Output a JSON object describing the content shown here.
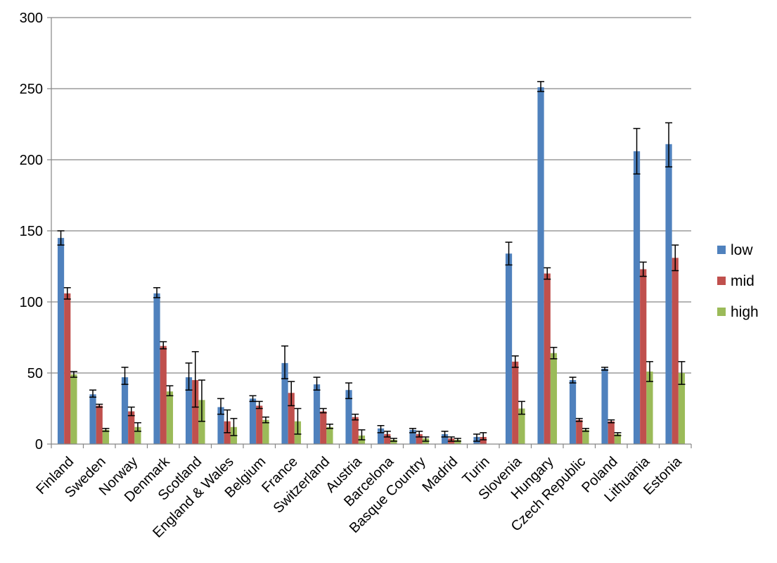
{
  "chart_data": {
    "type": "bar",
    "title": "",
    "xlabel": "",
    "ylabel": "",
    "ylim": [
      0,
      300
    ],
    "yticks": [
      0,
      50,
      100,
      150,
      200,
      250,
      300
    ],
    "grid": true,
    "legend_position": "right",
    "error_bars": true,
    "categories": [
      "Finland",
      "Sweden",
      "Norway",
      "Denmark",
      "Scotland",
      "England & Wales",
      "Belgium",
      "France",
      "Switzerland",
      "Austria",
      "Barcelona",
      "Basque Country",
      "Madrid",
      "Turin",
      "Slovenia",
      "Hungary",
      "Czech Republic",
      "Poland",
      "Lithuania",
      "Estonia"
    ],
    "series": [
      {
        "name": "low",
        "color": "#4F81BD",
        "values": [
          145,
          35,
          47,
          106,
          47,
          26,
          32,
          57,
          42,
          38,
          11,
          10,
          7,
          5,
          134,
          251,
          45,
          53,
          206,
          211
        ],
        "err_low": [
          140,
          33,
          42,
          103,
          38,
          21,
          30,
          46,
          38,
          32,
          8,
          8,
          5,
          2,
          126,
          248,
          43,
          52,
          190,
          195
        ],
        "err_high": [
          150,
          38,
          54,
          110,
          57,
          32,
          34,
          69,
          47,
          43,
          13,
          11,
          9,
          7,
          142,
          255,
          47,
          54,
          222,
          226
        ]
      },
      {
        "name": "mid",
        "color": "#C0504D",
        "values": [
          106,
          27,
          23,
          69,
          45,
          16,
          27,
          36,
          23,
          19,
          7,
          7,
          4,
          5,
          58,
          120,
          17,
          16,
          123,
          131
        ],
        "err_low": [
          102,
          26,
          20,
          67,
          26,
          8,
          25,
          27,
          22,
          17,
          5,
          5,
          2,
          3,
          54,
          116,
          16,
          15,
          118,
          122
        ],
        "err_high": [
          110,
          28,
          26,
          72,
          65,
          24,
          30,
          44,
          25,
          21,
          9,
          9,
          5,
          8,
          62,
          124,
          18,
          17,
          128,
          140
        ]
      },
      {
        "name": "high",
        "color": "#9BBB59",
        "values": [
          49,
          10,
          12,
          37,
          31,
          12,
          17,
          16,
          12,
          6,
          3,
          4,
          3,
          0,
          25,
          64,
          10,
          7,
          51,
          50
        ],
        "err_low": [
          47,
          9,
          9,
          34,
          16,
          6,
          15,
          7,
          11,
          3,
          2,
          2,
          2,
          0,
          21,
          60,
          9,
          6,
          44,
          42
        ],
        "err_high": [
          51,
          11,
          15,
          41,
          45,
          18,
          19,
          25,
          14,
          10,
          4,
          5,
          4,
          0,
          30,
          68,
          11,
          8,
          58,
          58
        ]
      }
    ]
  }
}
